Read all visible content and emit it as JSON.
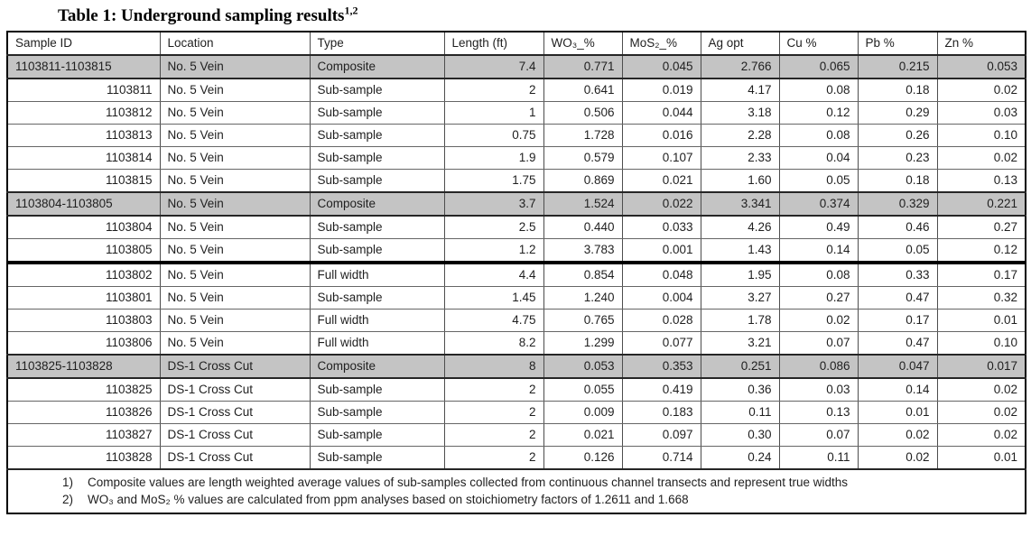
{
  "title": {
    "text": "Table 1: Underground sampling results",
    "superscript": "1,2"
  },
  "table": {
    "columns": [
      "Sample ID",
      "Location",
      "Type",
      "Length (ft)",
      "WO₃_%",
      "MoS₂_%",
      "Ag opt",
      "Cu %",
      "Pb %",
      "Zn %"
    ],
    "rows": [
      {
        "cells": [
          "1103811-1103815",
          "No. 5 Vein",
          "Composite",
          "7.4",
          "0.771",
          "0.045",
          "2.766",
          "0.065",
          "0.215",
          "0.053"
        ],
        "composite": true
      },
      {
        "cells": [
          "1103811",
          "No. 5 Vein",
          "Sub-sample",
          "2",
          "0.641",
          "0.019",
          "4.17",
          "0.08",
          "0.18",
          "0.02"
        ]
      },
      {
        "cells": [
          "1103812",
          "No. 5 Vein",
          "Sub-sample",
          "1",
          "0.506",
          "0.044",
          "3.18",
          "0.12",
          "0.29",
          "0.03"
        ]
      },
      {
        "cells": [
          "1103813",
          "No. 5 Vein",
          "Sub-sample",
          "0.75",
          "1.728",
          "0.016",
          "2.28",
          "0.08",
          "0.26",
          "0.10"
        ]
      },
      {
        "cells": [
          "1103814",
          "No. 5 Vein",
          "Sub-sample",
          "1.9",
          "0.579",
          "0.107",
          "2.33",
          "0.04",
          "0.23",
          "0.02"
        ]
      },
      {
        "cells": [
          "1103815",
          "No. 5 Vein",
          "Sub-sample",
          "1.75",
          "0.869",
          "0.021",
          "1.60",
          "0.05",
          "0.18",
          "0.13"
        ]
      },
      {
        "cells": [
          "1103804-1103805",
          "No. 5 Vein",
          "Composite",
          "3.7",
          "1.524",
          "0.022",
          "3.341",
          "0.374",
          "0.329",
          "0.221"
        ],
        "composite": true
      },
      {
        "cells": [
          "1103804",
          "No. 5 Vein",
          "Sub-sample",
          "2.5",
          "0.440",
          "0.033",
          "4.26",
          "0.49",
          "0.46",
          "0.27"
        ]
      },
      {
        "cells": [
          "1103805",
          "No. 5 Vein",
          "Sub-sample",
          "1.2",
          "3.783",
          "0.001",
          "1.43",
          "0.14",
          "0.05",
          "0.12"
        ],
        "segment_end": true
      },
      {
        "cells": [
          "1103802",
          "No. 5 Vein",
          "Full width",
          "4.4",
          "0.854",
          "0.048",
          "1.95",
          "0.08",
          "0.33",
          "0.17"
        ]
      },
      {
        "cells": [
          "1103801",
          "No. 5 Vein",
          "Sub-sample",
          "1.45",
          "1.240",
          "0.004",
          "3.27",
          "0.27",
          "0.47",
          "0.32"
        ]
      },
      {
        "cells": [
          "1103803",
          "No. 5 Vein",
          "Full width",
          "4.75",
          "0.765",
          "0.028",
          "1.78",
          "0.02",
          "0.17",
          "0.01"
        ]
      },
      {
        "cells": [
          "1103806",
          "No. 5 Vein",
          "Full width",
          "8.2",
          "1.299",
          "0.077",
          "3.21",
          "0.07",
          "0.47",
          "0.10"
        ]
      },
      {
        "cells": [
          "1103825-1103828",
          "DS-1 Cross Cut",
          "Composite",
          "8",
          "0.053",
          "0.353",
          "0.251",
          "0.086",
          "0.047",
          "0.017"
        ],
        "composite": true
      },
      {
        "cells": [
          "1103825",
          "DS-1 Cross Cut",
          "Sub-sample",
          "2",
          "0.055",
          "0.419",
          "0.36",
          "0.03",
          "0.14",
          "0.02"
        ]
      },
      {
        "cells": [
          "1103826",
          "DS-1 Cross Cut",
          "Sub-sample",
          "2",
          "0.009",
          "0.183",
          "0.11",
          "0.13",
          "0.01",
          "0.02"
        ]
      },
      {
        "cells": [
          "1103827",
          "DS-1 Cross Cut",
          "Sub-sample",
          "2",
          "0.021",
          "0.097",
          "0.30",
          "0.07",
          "0.02",
          "0.02"
        ]
      },
      {
        "cells": [
          "1103828",
          "DS-1 Cross Cut",
          "Sub-sample",
          "2",
          "0.126",
          "0.714",
          "0.24",
          "0.11",
          "0.02",
          "0.01"
        ]
      }
    ],
    "footnotes": [
      {
        "num": "1)",
        "text": "Composite values are length weighted average values of sub-samples collected from continuous channel transects and represent true widths"
      },
      {
        "num": "2)",
        "text": "WO₃ and MoS₂ % values are calculated from ppm analyses based on stoichiometry factors of 1.2611 and 1.668"
      }
    ]
  },
  "colors": {
    "highlight_row": "#c4c4c4",
    "grid_line": "#4d4d4d",
    "outer_border": "#000000"
  }
}
